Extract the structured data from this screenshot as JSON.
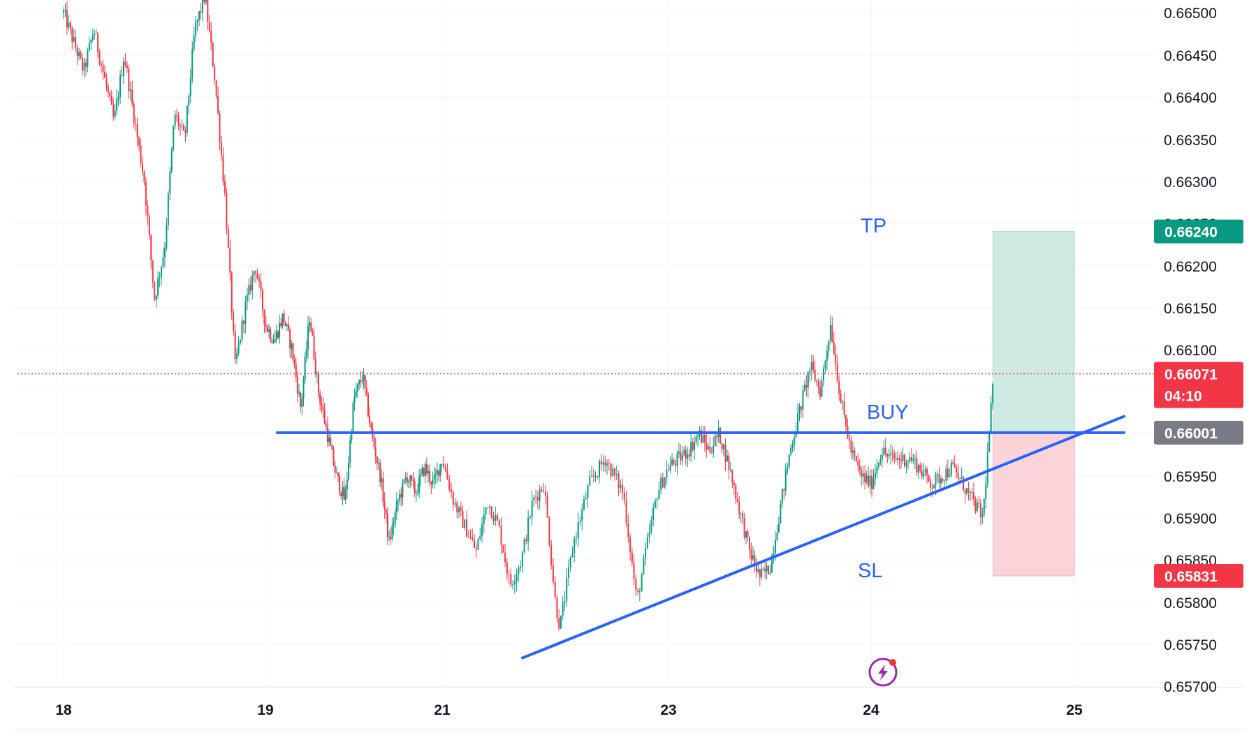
{
  "chart_data": {
    "type": "candlestick",
    "x_axis": {
      "tick_labels": [
        "18",
        "19",
        "21",
        "23",
        "24",
        "25"
      ],
      "tick_days": [
        0,
        1,
        2,
        3,
        4,
        5
      ]
    },
    "y_axis": {
      "tick_labels": [
        "0.66500",
        "0.66450",
        "0.66400",
        "0.66350",
        "0.66300",
        "0.66250",
        "0.66200",
        "0.66150",
        "0.66100",
        "0.66050",
        "0.66000",
        "0.65950",
        "0.65900",
        "0.65850",
        "0.65800",
        "0.65750",
        "0.65700"
      ],
      "tick_values": [
        0.665,
        0.6645,
        0.664,
        0.6635,
        0.663,
        0.6625,
        0.662,
        0.6615,
        0.661,
        0.6605,
        0.66,
        0.6595,
        0.659,
        0.6585,
        0.658,
        0.6575,
        0.657
      ],
      "ylim": [
        0.65695,
        0.66515
      ],
      "position": "right"
    },
    "grid": true,
    "colors": {
      "up": "#089981",
      "down": "#f23645",
      "trendline": "#2962ff",
      "profit_zone": "#cfeae3",
      "loss_zone": "#fbd4d8"
    },
    "price_path": [
      [
        0.0,
        0.665
      ],
      [
        0.1,
        0.6643
      ],
      [
        0.15,
        0.6648
      ],
      [
        0.25,
        0.6637
      ],
      [
        0.3,
        0.6645
      ],
      [
        0.4,
        0.663
      ],
      [
        0.45,
        0.6616
      ],
      [
        0.5,
        0.6622
      ],
      [
        0.55,
        0.6638
      ],
      [
        0.6,
        0.6635
      ],
      [
        0.65,
        0.6648
      ],
      [
        0.7,
        0.6652
      ],
      [
        0.75,
        0.6642
      ],
      [
        0.8,
        0.6628
      ],
      [
        0.85,
        0.6608
      ],
      [
        0.9,
        0.6615
      ],
      [
        0.95,
        0.662
      ],
      [
        1.0,
        0.6613
      ],
      [
        1.05,
        0.6611
      ],
      [
        1.1,
        0.6614
      ],
      [
        1.15,
        0.661
      ],
      [
        1.2,
        0.6603
      ],
      [
        1.25,
        0.6614
      ],
      [
        1.3,
        0.6605
      ],
      [
        1.35,
        0.66
      ],
      [
        1.4,
        0.6595
      ],
      [
        1.45,
        0.6592
      ],
      [
        1.5,
        0.6604
      ],
      [
        1.55,
        0.6607
      ],
      [
        1.6,
        0.66
      ],
      [
        1.65,
        0.6595
      ],
      [
        1.7,
        0.6587
      ],
      [
        1.75,
        0.6592
      ],
      [
        1.8,
        0.6595
      ],
      [
        1.85,
        0.6593
      ],
      [
        1.9,
        0.6596
      ],
      [
        1.95,
        0.6594
      ],
      [
        2.0,
        0.6597
      ],
      [
        2.05,
        0.6592
      ],
      [
        2.1,
        0.6589
      ],
      [
        2.15,
        0.6586
      ],
      [
        2.2,
        0.6592
      ],
      [
        2.25,
        0.6589
      ],
      [
        2.3,
        0.6582
      ],
      [
        2.35,
        0.6585
      ],
      [
        2.4,
        0.6592
      ],
      [
        2.45,
        0.6594
      ],
      [
        2.5,
        0.658
      ],
      [
        2.52,
        0.6577
      ],
      [
        2.58,
        0.6587
      ],
      [
        2.65,
        0.6594
      ],
      [
        2.72,
        0.6597
      ],
      [
        2.8,
        0.6593
      ],
      [
        2.86,
        0.658
      ],
      [
        2.9,
        0.6586
      ],
      [
        2.95,
        0.6593
      ],
      [
        3.0,
        0.6596
      ],
      [
        3.1,
        0.6598
      ],
      [
        3.15,
        0.66
      ],
      [
        3.2,
        0.6598
      ],
      [
        3.25,
        0.66
      ],
      [
        3.3,
        0.6596
      ],
      [
        3.35,
        0.6591
      ],
      [
        3.4,
        0.6586
      ],
      [
        3.45,
        0.6583
      ],
      [
        3.5,
        0.6584
      ],
      [
        3.55,
        0.6591
      ],
      [
        3.6,
        0.6598
      ],
      [
        3.65,
        0.6603
      ],
      [
        3.7,
        0.6608
      ],
      [
        3.75,
        0.6605
      ],
      [
        3.8,
        0.6613
      ],
      [
        3.85,
        0.6604
      ],
      [
        3.9,
        0.6598
      ],
      [
        3.95,
        0.6595
      ],
      [
        4.0,
        0.6594
      ],
      [
        4.05,
        0.6598
      ],
      [
        4.1,
        0.6597
      ],
      [
        4.2,
        0.6597
      ],
      [
        4.3,
        0.6594
      ],
      [
        4.4,
        0.6596
      ],
      [
        4.5,
        0.6592
      ],
      [
        4.55,
        0.659
      ],
      [
        4.6,
        0.6606
      ]
    ],
    "annotations": {
      "tp_label": "TP",
      "buy_label": "BUY",
      "sl_label": "SL",
      "horizontal_level": 0.66001,
      "trendline": [
        [
          2.35,
          0.65733
        ],
        [
          5.25,
          0.66021
        ]
      ],
      "position_tool": {
        "x_start": 4.6,
        "x_end": 5.0,
        "entry": 0.66001,
        "take_profit": 0.6624,
        "stop_loss": 0.65831
      },
      "current_price_line": 0.66071
    },
    "price_badges": [
      {
        "label": "0.66240",
        "value": 0.6624,
        "color": "#089981"
      },
      {
        "label": "0.66071",
        "sublabel": "04:10",
        "value": 0.66071,
        "color": "#f23645"
      },
      {
        "label": "0.66001",
        "value": 0.66001,
        "color": "#787b86"
      },
      {
        "label": "0.65831",
        "value": 0.65831,
        "color": "#f23645"
      }
    ],
    "watermark_icon": "lightning-icon"
  }
}
